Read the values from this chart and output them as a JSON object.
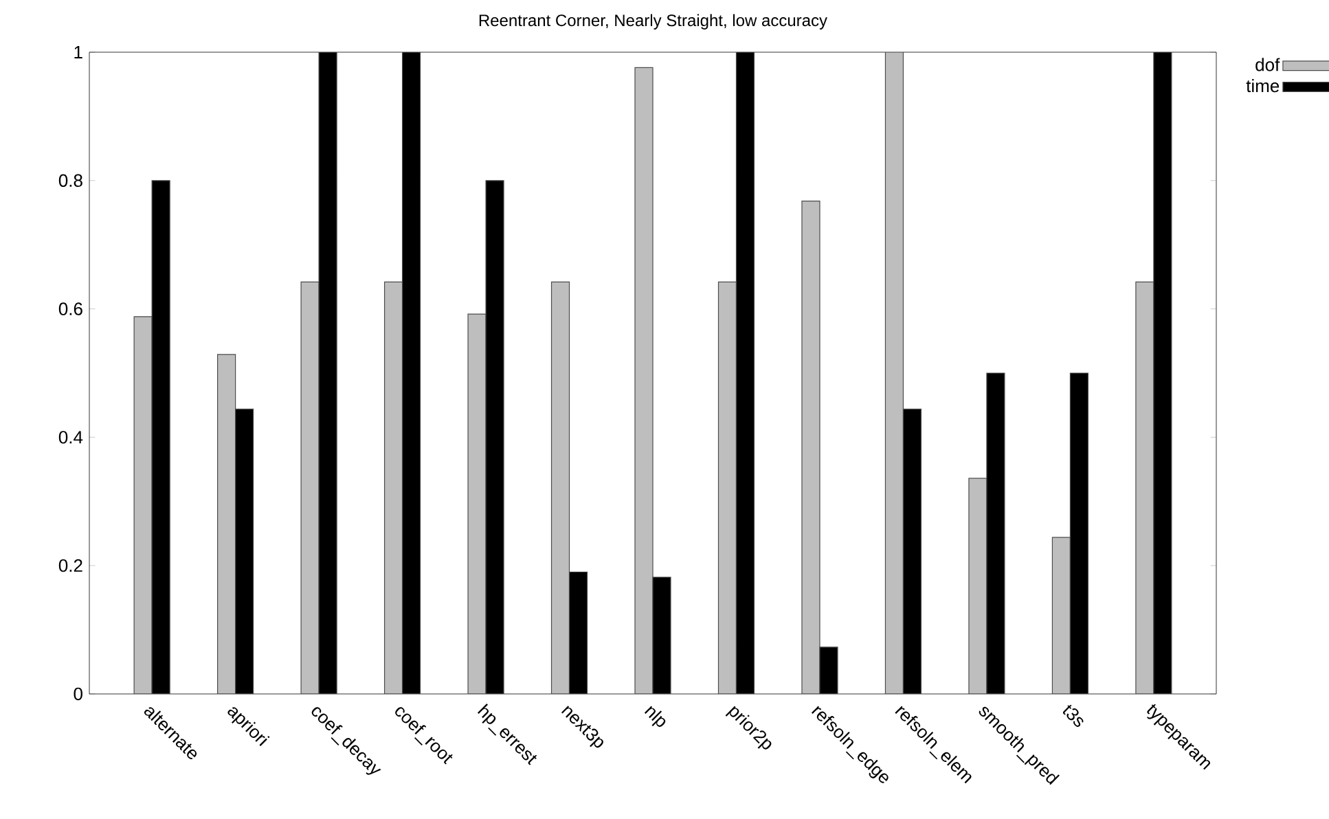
{
  "chart_data": {
    "type": "bar",
    "title": "Reentrant Corner, Nearly Straight, low accuracy",
    "categories": [
      "alternate",
      "apriori",
      "coef_decay",
      "coef_root",
      "hp_errest",
      "next3p",
      "nlp",
      "prior2p",
      "refsoln_edge",
      "refsoln_elem",
      "smooth_pred",
      "t3s",
      "typeparam"
    ],
    "series": [
      {
        "name": "dof",
        "color": "#bebebe",
        "values": [
          0.588,
          0.529,
          0.642,
          0.642,
          0.592,
          0.642,
          0.976,
          0.642,
          0.768,
          1,
          0.336,
          0.244,
          0.642
        ]
      },
      {
        "name": "time",
        "color": "#000000",
        "values": [
          0.8,
          0.444,
          1,
          1,
          0.8,
          0.19,
          0.182,
          1,
          0.073,
          0.444,
          0.5,
          0.5,
          1
        ]
      }
    ],
    "ylim": [
      0,
      1
    ],
    "yticks": [
      0,
      0.2,
      0.4,
      0.6,
      0.8,
      1
    ],
    "grid": false,
    "legend": "top right"
  }
}
